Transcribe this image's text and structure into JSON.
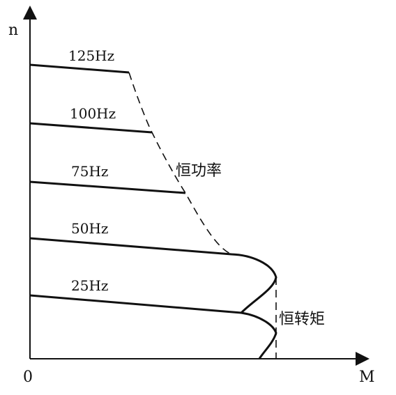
{
  "axes": {
    "y_label": "n",
    "x_label": "M",
    "origin_label": "0"
  },
  "curves": [
    {
      "label": "125Hz"
    },
    {
      "label": "100Hz"
    },
    {
      "label": "75Hz"
    },
    {
      "label": "50Hz"
    },
    {
      "label": "25Hz"
    }
  ],
  "regions": {
    "constant_power_label": "恒功率",
    "constant_torque_label": "恒转矩"
  },
  "colors": {
    "line": "#111111",
    "background": "#ffffff"
  }
}
